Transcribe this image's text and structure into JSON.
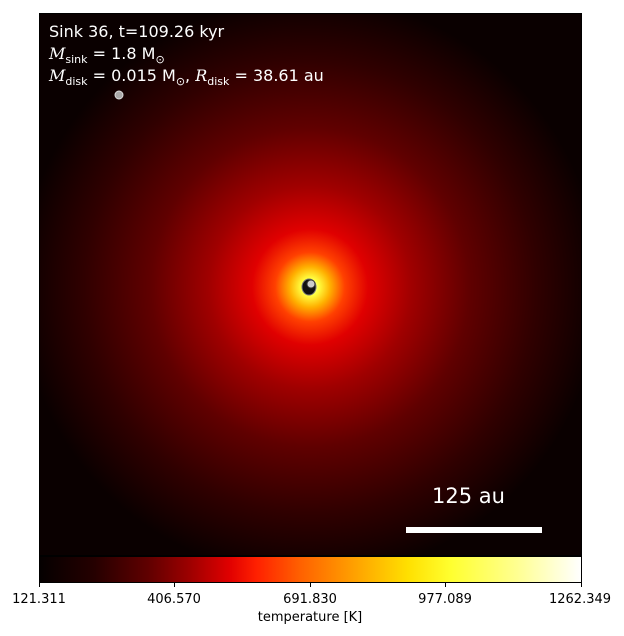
{
  "figure": {
    "title_line": "Sink 36, t=109.26 kyr",
    "sink_mass": {
      "symbol": "M",
      "sub": "sink",
      "value": "= 1.8 M",
      "unit_sub": "⊙"
    },
    "disk_line": {
      "mass_value": "= 0.015 M",
      "unit_sub": "⊙",
      "radius_value": "= 38.61 au",
      "m_sym": "M",
      "m_sub": "disk",
      "r_sym": "R",
      "r_sub": "disk"
    },
    "scale_bar_label": "125 au"
  },
  "colorbar": {
    "label": "temperature [K]",
    "ticks": [
      "121.311",
      "406.570",
      "691.830",
      "977.089",
      "1262.349"
    ],
    "min": 121.311,
    "max": 1262.349,
    "colormap": "hot"
  },
  "colors": {
    "background_low": "#050000",
    "hot_core": "#ffffff",
    "mid": "#e00000"
  }
}
